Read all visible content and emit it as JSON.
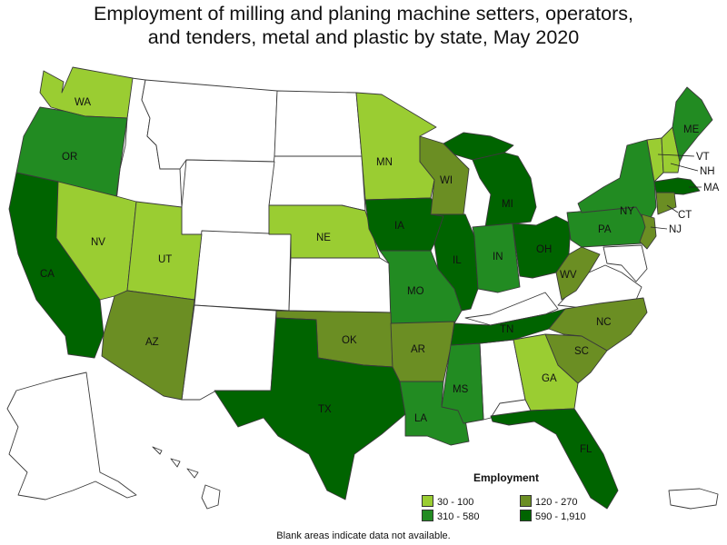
{
  "title_line1": "Employment of milling and planing machine setters, operators,",
  "title_line2": "and tenders, metal and plastic by state, May 2020",
  "legend": {
    "title": "Employment",
    "items": [
      {
        "label": "30 - 100",
        "color": "#9acd32"
      },
      {
        "label": "120 - 270",
        "color": "#6b8e23"
      },
      {
        "label": "310 - 580",
        "color": "#228b22"
      },
      {
        "label": "590 - 1,910",
        "color": "#006400"
      }
    ]
  },
  "footnote": "Blank areas indicate data not available.",
  "state_labels": [
    "WA",
    "OR",
    "CA",
    "NV",
    "UT",
    "AZ",
    "NE",
    "MN",
    "IA",
    "MO",
    "OK",
    "TX",
    "AR",
    "LA",
    "MS",
    "TN",
    "IL",
    "WI",
    "MI",
    "IN",
    "OH",
    "WV",
    "NC",
    "SC",
    "GA",
    "FL",
    "PA",
    "NY",
    "VT",
    "NH",
    "ME",
    "MA",
    "CT",
    "NJ"
  ],
  "states": {
    "WA": "30 - 100",
    "OR": "310 - 580",
    "CA": "590 - 1,910",
    "NV": "30 - 100",
    "UT": "30 - 100",
    "AZ": "120 - 270",
    "NE": "30 - 100",
    "MN": "30 - 100",
    "IA": "590 - 1,910",
    "MO": "310 - 580",
    "OK": "120 - 270",
    "TX": "590 - 1,910",
    "AR": "120 - 270",
    "LA": "310 - 580",
    "MS": "310 - 580",
    "TN": "590 - 1,910",
    "IL": "590 - 1,910",
    "WI": "120 - 270",
    "MI": "590 - 1,910",
    "IN": "310 - 580",
    "OH": "590 - 1,910",
    "WV": "120 - 270",
    "NC": "120 - 270",
    "SC": "120 - 270",
    "GA": "30 - 100",
    "FL": "590 - 1,910",
    "PA": "310 - 580",
    "NY": "310 - 580",
    "VT": "30 - 100",
    "NH": "30 - 100",
    "ME": "310 - 580",
    "MA": "590 - 1,910",
    "CT": "120 - 270",
    "NJ": "120 - 270"
  }
}
